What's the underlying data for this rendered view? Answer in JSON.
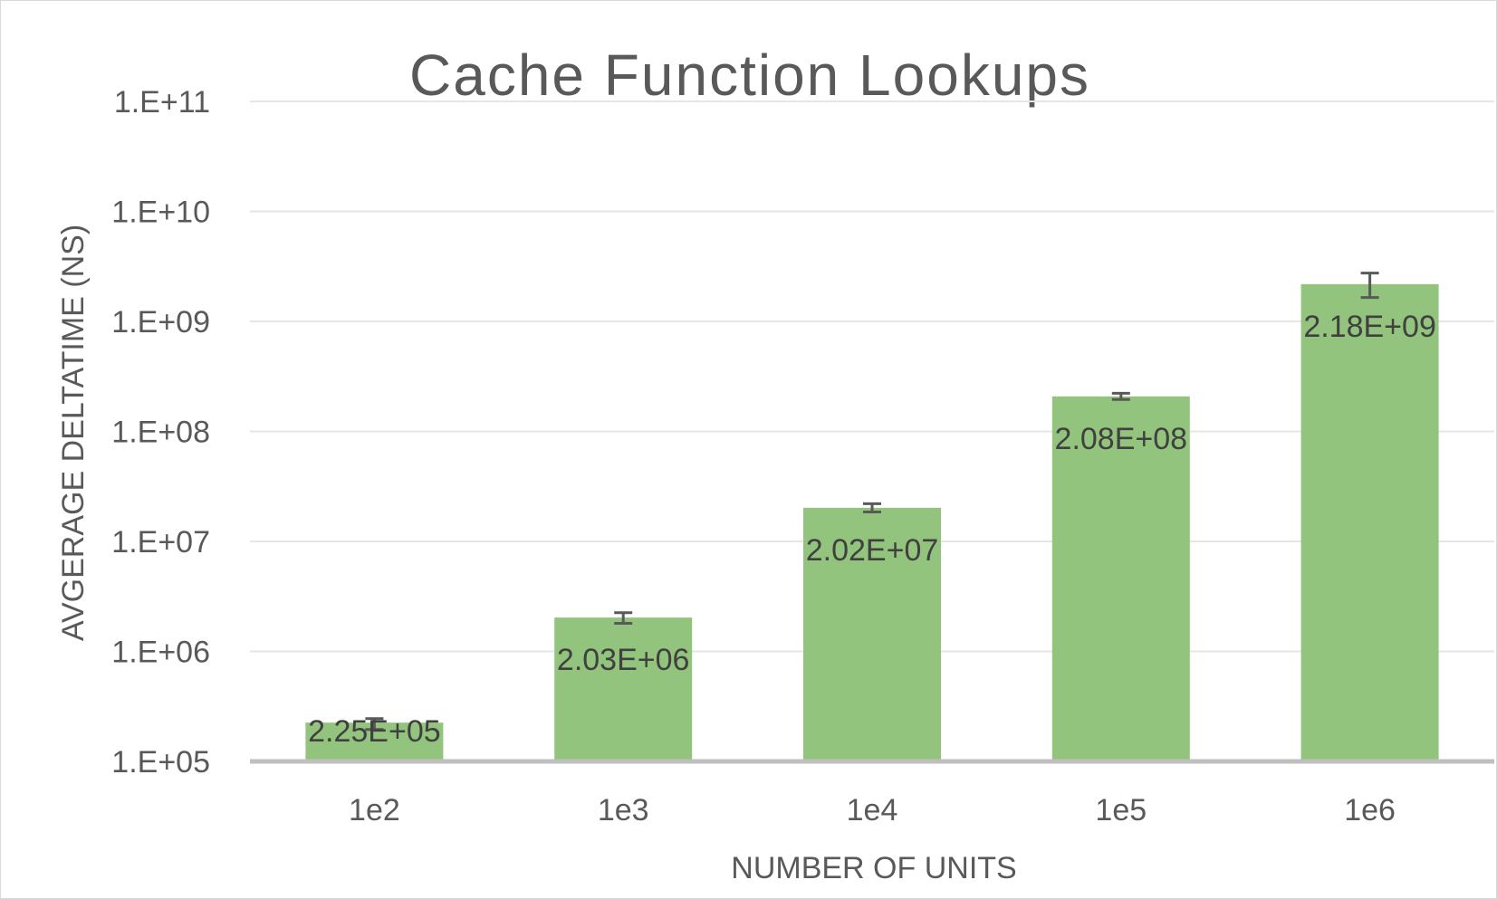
{
  "chart_data": {
    "type": "bar",
    "title": "Cache Function Lookups",
    "xlabel": "NUMBER OF UNITS",
    "ylabel": "AVGERAGE DELTATIME (NS)",
    "yscale": "log",
    "ylim": [
      100000,
      100000000000
    ],
    "yticks": [
      100000,
      1000000,
      10000000,
      100000000,
      1000000000,
      10000000000,
      100000000000
    ],
    "ytick_labels": [
      "1.E+05",
      "1.E+06",
      "1.E+07",
      "1.E+08",
      "1.E+09",
      "1.E+10",
      "1.E+11"
    ],
    "categories": [
      "1e2",
      "1e3",
      "1e4",
      "1e5",
      "1e6"
    ],
    "values": [
      225000,
      2030000,
      20200000,
      208000000,
      2180000000
    ],
    "data_labels": [
      "2.25E+05",
      "2.03E+06",
      "2.02E+07",
      "2.08E+08",
      "2.18E+09"
    ],
    "error_low": [
      195000,
      1800000,
      18500000,
      195000000,
      1650000000
    ],
    "error_high": [
      245000,
      2250000,
      22000000,
      222000000,
      2750000000
    ],
    "bar_color": "#93c47d",
    "grid": true,
    "legend": "none"
  }
}
